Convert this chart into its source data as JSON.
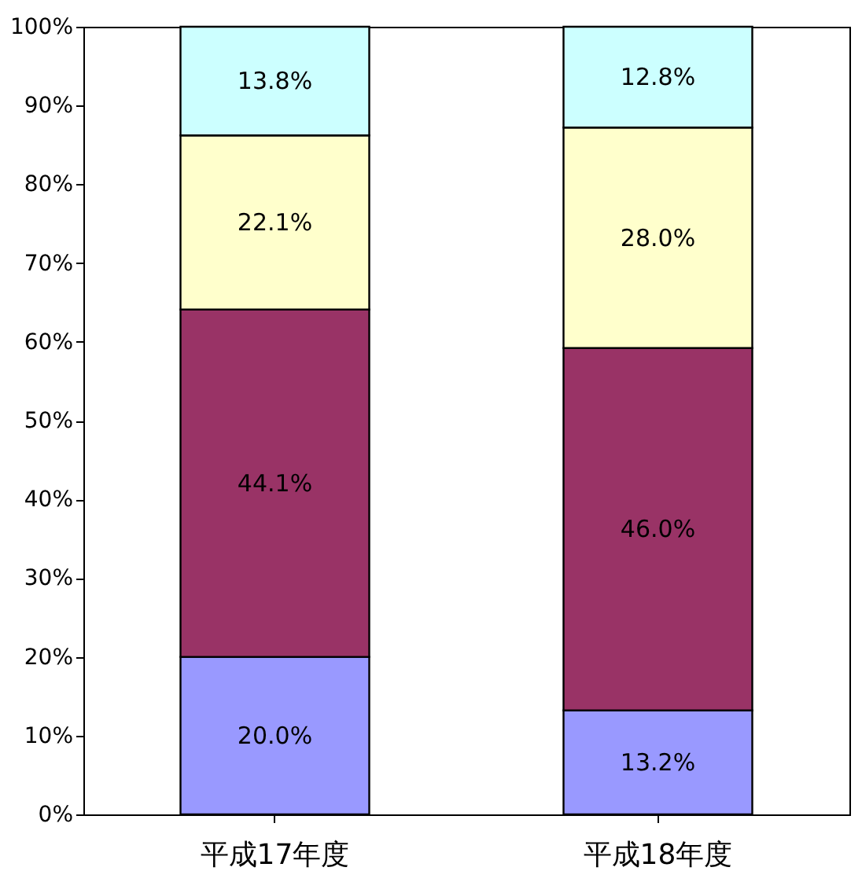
{
  "chart_data": {
    "type": "bar",
    "stacked": true,
    "categories": [
      "平成17年度",
      "平成18年度"
    ],
    "series": [
      {
        "color": "#9999ff",
        "values": [
          20.0,
          13.2
        ],
        "value_labels": [
          "20.0%",
          "13.2%"
        ]
      },
      {
        "color": "#993366",
        "values": [
          44.1,
          46.0
        ],
        "value_labels": [
          "44.1%",
          "46.0%"
        ]
      },
      {
        "color": "#ffffcc",
        "values": [
          22.1,
          28.0
        ],
        "value_labels": [
          "22.1%",
          "28.0%"
        ]
      },
      {
        "color": "#ccffff",
        "values": [
          13.8,
          12.8
        ],
        "value_labels": [
          "13.8%",
          "12.8%"
        ]
      }
    ],
    "ylim": [
      0,
      100
    ],
    "yticks": [
      {
        "value": 0,
        "label": "0%"
      },
      {
        "value": 10,
        "label": "10%"
      },
      {
        "value": 20,
        "label": "20%"
      },
      {
        "value": 30,
        "label": "30%"
      },
      {
        "value": 40,
        "label": "40%"
      },
      {
        "value": 50,
        "label": "50%"
      },
      {
        "value": 60,
        "label": "60%"
      },
      {
        "value": 70,
        "label": "70%"
      },
      {
        "value": 80,
        "label": "80%"
      },
      {
        "value": 90,
        "label": "90%"
      },
      {
        "value": 100,
        "label": "100%"
      }
    ],
    "grid": false
  }
}
